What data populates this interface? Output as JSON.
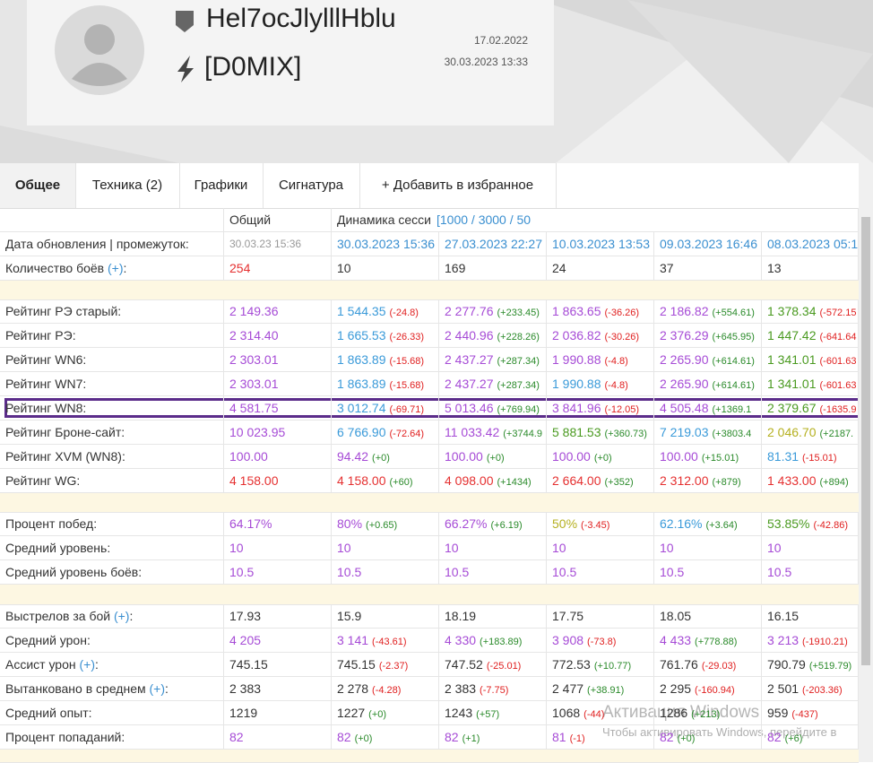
{
  "header": {
    "name": "Hel7ocJlylllHblu",
    "clan": "[D0MIX]",
    "dates": [
      "17.02.2022",
      "30.03.2023 13:33"
    ]
  },
  "tabs": [
    "Общее",
    "Техника (2)",
    "Графики",
    "Сигнатура",
    "+ Добавить в избранное"
  ],
  "table": {
    "columns": [
      "Общий",
      "Динамика сесси",
      "[1000 / 3000 / 50"
    ],
    "sections": [
      [
        {
          "label": "Дата обновления | промежуток:",
          "cells": [
            {
              "v": "30.03.23 15:36",
              "color": "#999999"
            },
            {
              "v": "30.03.2023 15:36",
              "color": "#3a8fd0"
            },
            {
              "v": "27.03.2023 22:27",
              "color": "#3a8fd0"
            },
            {
              "v": "10.03.2023 13:53",
              "color": "#3a8fd0"
            },
            {
              "v": "09.03.2023 16:46",
              "color": "#3a8fd0"
            },
            {
              "v": "08.03.2023 05:1",
              "color": "#3a8fd0"
            }
          ]
        },
        {
          "label": "Количество боёв ",
          "link": "(+)",
          "suffix": ":",
          "cells": [
            {
              "v": "254",
              "color": "#e53030"
            },
            {
              "v": "10"
            },
            {
              "v": "169"
            },
            {
              "v": "24"
            },
            {
              "v": "37"
            },
            {
              "v": "13"
            }
          ]
        }
      ],
      [
        {
          "label": "Рейтинг РЭ старый:",
          "cells": [
            {
              "v": "2 149.36",
              "color": "#a64bd6"
            },
            {
              "v": "1 544.35",
              "d": "(-24.8)",
              "color": "#3a9ad9"
            },
            {
              "v": "2 277.76",
              "d": "(+233.45)",
              "color": "#a64bd6"
            },
            {
              "v": "1 863.65",
              "d": "(-36.26)",
              "color": "#a64bd6"
            },
            {
              "v": "2 186.82",
              "d": "(+554.61)",
              "color": "#a64bd6"
            },
            {
              "v": "1 378.34",
              "d": "(-572.15",
              "color": "#4a9a20"
            }
          ]
        },
        {
          "label": "Рейтинг РЭ:",
          "cells": [
            {
              "v": "2 314.40",
              "color": "#a64bd6"
            },
            {
              "v": "1 665.53",
              "d": "(-26.33)",
              "color": "#3a9ad9"
            },
            {
              "v": "2 440.96",
              "d": "(+228.26)",
              "color": "#a64bd6"
            },
            {
              "v": "2 036.82",
              "d": "(-30.26)",
              "color": "#a64bd6"
            },
            {
              "v": "2 376.29",
              "d": "(+645.95)",
              "color": "#a64bd6"
            },
            {
              "v": "1 447.42",
              "d": "(-641.64",
              "color": "#4a9a20"
            }
          ]
        },
        {
          "label": "Рейтинг WN6:",
          "cells": [
            {
              "v": "2 303.01",
              "color": "#a64bd6"
            },
            {
              "v": "1 863.89",
              "d": "(-15.68)",
              "color": "#3a9ad9"
            },
            {
              "v": "2 437.27",
              "d": "(+287.34)",
              "color": "#a64bd6"
            },
            {
              "v": "1 990.88",
              "d": "(-4.8)",
              "color": "#a64bd6"
            },
            {
              "v": "2 265.90",
              "d": "(+614.61)",
              "color": "#a64bd6"
            },
            {
              "v": "1 341.01",
              "d": "(-601.63",
              "color": "#4a9a20"
            }
          ]
        },
        {
          "label": "Рейтинг WN7:",
          "cells": [
            {
              "v": "2 303.01",
              "color": "#a64bd6"
            },
            {
              "v": "1 863.89",
              "d": "(-15.68)",
              "color": "#3a9ad9"
            },
            {
              "v": "2 437.27",
              "d": "(+287.34)",
              "color": "#a64bd6"
            },
            {
              "v": "1 990.88",
              "d": "(-4.8)",
              "color": "#3a9ad9"
            },
            {
              "v": "2 265.90",
              "d": "(+614.61)",
              "color": "#a64bd6"
            },
            {
              "v": "1 341.01",
              "d": "(-601.63",
              "color": "#4a9a20"
            }
          ]
        },
        {
          "label": "Рейтинг WN8:",
          "cells": [
            {
              "v": "4 581.75",
              "color": "#a64bd6"
            },
            {
              "v": "3 012.74",
              "d": "(-69.71)",
              "color": "#3a9ad9"
            },
            {
              "v": "5 013.46",
              "d": "(+769.94)",
              "color": "#a64bd6"
            },
            {
              "v": "3 841.96",
              "d": "(-12.05)",
              "color": "#a64bd6"
            },
            {
              "v": "4 505.48",
              "d": "(+1369.1",
              "color": "#a64bd6"
            },
            {
              "v": "2 379.67",
              "d": "(-1635.9",
              "color": "#4a9a20"
            }
          ]
        },
        {
          "label": "Рейтинг Броне-сайт:",
          "cells": [
            {
              "v": "10 023.95",
              "color": "#a64bd6"
            },
            {
              "v": "6 766.90",
              "d": "(-72.64)",
              "color": "#3a9ad9"
            },
            {
              "v": "11 033.42",
              "d": "(+3744.9",
              "color": "#a64bd6"
            },
            {
              "v": "5 881.53",
              "d": "(+360.73)",
              "color": "#4a9a20"
            },
            {
              "v": "7 219.03",
              "d": "(+3803.4",
              "color": "#3a9ad9"
            },
            {
              "v": "2 046.70",
              "d": "(+2187.",
              "color": "#b5b020"
            }
          ]
        },
        {
          "label": "Рейтинг XVM (WN8):",
          "cells": [
            {
              "v": "100.00",
              "color": "#a64bd6"
            },
            {
              "v": "94.42",
              "d": "(+0)",
              "color": "#a64bd6"
            },
            {
              "v": "100.00",
              "d": "(+0)",
              "color": "#a64bd6"
            },
            {
              "v": "100.00",
              "d": "(+0)",
              "color": "#a64bd6"
            },
            {
              "v": "100.00",
              "d": "(+15.01)",
              "color": "#a64bd6"
            },
            {
              "v": "81.31",
              "d": "(-15.01)",
              "color": "#3a9ad9"
            }
          ]
        },
        {
          "label": "Рейтинг WG:",
          "cells": [
            {
              "v": "4 158.00",
              "color": "#e53030"
            },
            {
              "v": "4 158.00",
              "d": "(+60)",
              "color": "#e53030"
            },
            {
              "v": "4 098.00",
              "d": "(+1434)",
              "color": "#e53030"
            },
            {
              "v": "2 664.00",
              "d": "(+352)",
              "color": "#e53030"
            },
            {
              "v": "2 312.00",
              "d": "(+879)",
              "color": "#e53030"
            },
            {
              "v": "1 433.00",
              "d": "(+894)",
              "color": "#e53030"
            }
          ]
        }
      ],
      [
        {
          "label": "Процент побед:",
          "cells": [
            {
              "v": "64.17%",
              "color": "#a64bd6"
            },
            {
              "v": "80%",
              "d": "(+0.65)",
              "color": "#a64bd6"
            },
            {
              "v": "66.27%",
              "d": "(+6.19)",
              "color": "#a64bd6"
            },
            {
              "v": "50%",
              "d": "(-3.45)",
              "color": "#b5b020"
            },
            {
              "v": "62.16%",
              "d": "(+3.64)",
              "color": "#3a9ad9"
            },
            {
              "v": "53.85%",
              "d": "(-42.86)",
              "color": "#4a9a20"
            }
          ]
        },
        {
          "label": "Средний уровень:",
          "cells": [
            {
              "v": "10",
              "color": "#a64bd6"
            },
            {
              "v": "10",
              "color": "#a64bd6"
            },
            {
              "v": "10",
              "color": "#a64bd6"
            },
            {
              "v": "10",
              "color": "#a64bd6"
            },
            {
              "v": "10",
              "color": "#a64bd6"
            },
            {
              "v": "10",
              "color": "#a64bd6"
            }
          ]
        },
        {
          "label": "Средний уровень боёв:",
          "cells": [
            {
              "v": "10.5",
              "color": "#a64bd6"
            },
            {
              "v": "10.5",
              "color": "#a64bd6"
            },
            {
              "v": "10.5",
              "color": "#a64bd6"
            },
            {
              "v": "10.5",
              "color": "#a64bd6"
            },
            {
              "v": "10.5",
              "color": "#a64bd6"
            },
            {
              "v": "10.5",
              "color": "#a64bd6"
            }
          ]
        }
      ],
      [
        {
          "label": "Выстрелов за бой ",
          "link": "(+)",
          "suffix": ":",
          "cells": [
            {
              "v": "17.93"
            },
            {
              "v": "15.9"
            },
            {
              "v": "18.19"
            },
            {
              "v": "17.75"
            },
            {
              "v": "18.05"
            },
            {
              "v": "16.15"
            }
          ]
        },
        {
          "label": "Средний урон:",
          "cells": [
            {
              "v": "4 205",
              "color": "#a64bd6"
            },
            {
              "v": "3 141",
              "d": "(-43.61)",
              "color": "#a64bd6"
            },
            {
              "v": "4 330",
              "d": "(+183.89)",
              "color": "#a64bd6"
            },
            {
              "v": "3 908",
              "d": "(-73.8)",
              "color": "#a64bd6"
            },
            {
              "v": "4 433",
              "d": "(+778.88)",
              "color": "#a64bd6"
            },
            {
              "v": "3 213",
              "d": "(-1910.21)",
              "color": "#a64bd6"
            }
          ]
        },
        {
          "label": "Ассист урон ",
          "link": "(+)",
          "suffix": ":",
          "cells": [
            {
              "v": "745.15"
            },
            {
              "v": "745.15",
              "d": "(-2.37)"
            },
            {
              "v": "747.52",
              "d": "(-25.01)"
            },
            {
              "v": "772.53",
              "d": "(+10.77)"
            },
            {
              "v": "761.76",
              "d": "(-29.03)"
            },
            {
              "v": "790.79",
              "d": "(+519.79)"
            }
          ]
        },
        {
          "label": "Вытанковано в среднем ",
          "link": "(+)",
          "suffix": ":",
          "cells": [
            {
              "v": "2 383"
            },
            {
              "v": "2 278",
              "d": "(-4.28)"
            },
            {
              "v": "2 383",
              "d": "(-7.75)"
            },
            {
              "v": "2 477",
              "d": "(+38.91)"
            },
            {
              "v": "2 295",
              "d": "(-160.94)"
            },
            {
              "v": "2 501",
              "d": "(-203.36)"
            }
          ]
        },
        {
          "label": "Средний опыт:",
          "cells": [
            {
              "v": "1219"
            },
            {
              "v": "1227",
              "d": "(+0)"
            },
            {
              "v": "1243",
              "d": "(+57)"
            },
            {
              "v": "1068",
              "d": "(-44)"
            },
            {
              "v": "1286",
              "d": "(+213)"
            },
            {
              "v": "959",
              "d": "(-437)"
            }
          ]
        },
        {
          "label": "Процент попаданий:",
          "cells": [
            {
              "v": "82",
              "color": "#a64bd6"
            },
            {
              "v": "82",
              "d": "(+0)",
              "color": "#a64bd6"
            },
            {
              "v": "82",
              "d": "(+1)",
              "color": "#a64bd6"
            },
            {
              "v": "81",
              "d": "(-1)",
              "color": "#a64bd6"
            },
            {
              "v": "82",
              "d": "(+0)",
              "color": "#a64bd6"
            },
            {
              "v": "82",
              "d": "(+6)",
              "color": "#a64bd6"
            }
          ]
        }
      ]
    ]
  },
  "watermark": [
    "Активация Windows",
    "Чтобы активировать Windows, перейдите в"
  ]
}
